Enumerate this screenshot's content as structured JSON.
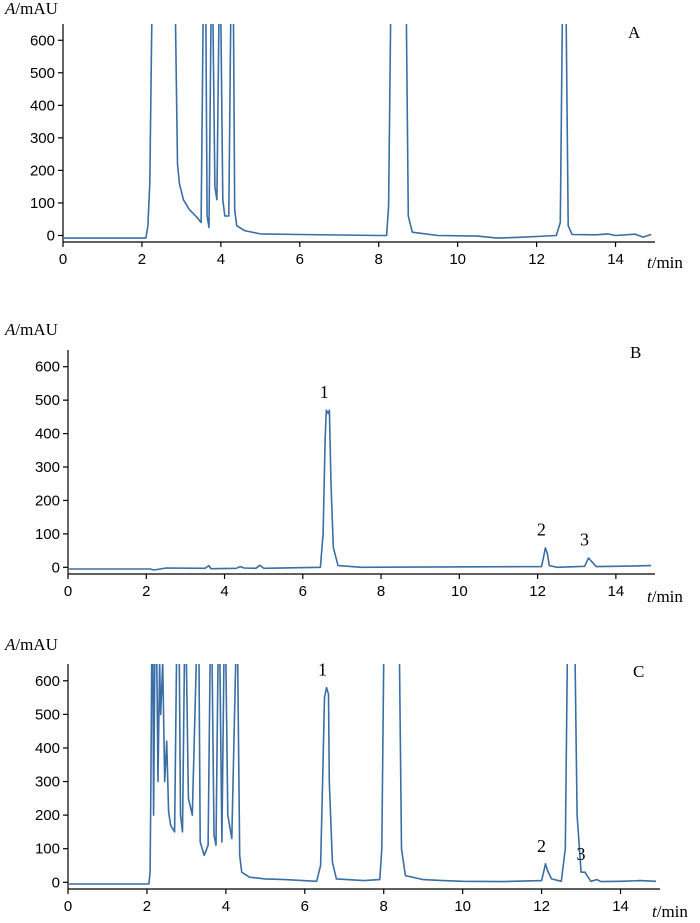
{
  "chart_data": [
    {
      "type": "line",
      "panel": "A",
      "ylabel_var": "A",
      "ylabel_unit": "/mAU",
      "xlabel_var": "t",
      "xlabel_unit": "/min",
      "xlim": [
        0,
        15
      ],
      "ylim": [
        -20,
        650
      ],
      "xticks": [
        0,
        2,
        4,
        6,
        8,
        10,
        12,
        14
      ],
      "yticks": [
        0,
        100,
        200,
        300,
        400,
        500,
        600
      ],
      "color": "#3a6ea5",
      "peak_labels": [],
      "trace": [
        [
          0,
          -8
        ],
        [
          2.1,
          -8
        ],
        [
          2.15,
          30
        ],
        [
          2.2,
          160
        ],
        [
          2.25,
          660
        ],
        [
          2.85,
          660
        ],
        [
          2.9,
          220
        ],
        [
          2.95,
          160
        ],
        [
          3.05,
          110
        ],
        [
          3.2,
          80
        ],
        [
          3.4,
          55
        ],
        [
          3.5,
          40
        ],
        [
          3.55,
          660
        ],
        [
          3.62,
          660
        ],
        [
          3.65,
          60
        ],
        [
          3.7,
          25
        ],
        [
          3.75,
          660
        ],
        [
          3.8,
          660
        ],
        [
          3.85,
          150
        ],
        [
          3.9,
          110
        ],
        [
          3.95,
          660
        ],
        [
          4.0,
          660
        ],
        [
          4.05,
          110
        ],
        [
          4.1,
          60
        ],
        [
          4.2,
          60
        ],
        [
          4.25,
          660
        ],
        [
          4.32,
          660
        ],
        [
          4.35,
          80
        ],
        [
          4.4,
          30
        ],
        [
          4.6,
          15
        ],
        [
          5.0,
          5
        ],
        [
          6.0,
          3
        ],
        [
          8.0,
          0
        ],
        [
          8.2,
          0
        ],
        [
          8.25,
          90
        ],
        [
          8.3,
          660
        ],
        [
          8.7,
          660
        ],
        [
          8.75,
          60
        ],
        [
          8.85,
          10
        ],
        [
          9.5,
          0
        ],
        [
          10.5,
          -2
        ],
        [
          11,
          -8
        ],
        [
          11.5,
          -6
        ],
        [
          12.0,
          -3
        ],
        [
          12.5,
          0
        ],
        [
          12.6,
          40
        ],
        [
          12.65,
          660
        ],
        [
          12.75,
          660
        ],
        [
          12.8,
          30
        ],
        [
          12.9,
          3
        ],
        [
          13.5,
          2
        ],
        [
          13.8,
          5
        ],
        [
          14.0,
          0
        ],
        [
          14.5,
          4
        ],
        [
          14.7,
          -5
        ],
        [
          14.9,
          3
        ]
      ]
    },
    {
      "type": "line",
      "panel": "B",
      "ylabel_var": "A",
      "ylabel_unit": "/mAU",
      "xlabel_var": "t",
      "xlabel_unit": "/min",
      "xlim": [
        0,
        15
      ],
      "ylim": [
        -20,
        650
      ],
      "xticks": [
        0,
        2,
        4,
        6,
        8,
        10,
        12,
        14
      ],
      "yticks": [
        0,
        100,
        200,
        300,
        400,
        500,
        600
      ],
      "color": "#3a6ea5",
      "peak_labels": [
        {
          "text": "1",
          "x": 6.65,
          "y": 470
        },
        {
          "text": "2",
          "x": 12.2,
          "y": 60
        },
        {
          "text": "3",
          "x": 13.3,
          "y": 30
        }
      ],
      "trace": [
        [
          0,
          -5
        ],
        [
          2.1,
          -5
        ],
        [
          2.2,
          -8
        ],
        [
          2.5,
          -2
        ],
        [
          3.5,
          -3
        ],
        [
          3.6,
          5
        ],
        [
          3.65,
          -4
        ],
        [
          4.3,
          -3
        ],
        [
          4.4,
          2
        ],
        [
          4.5,
          -2
        ],
        [
          4.8,
          -3
        ],
        [
          4.9,
          6
        ],
        [
          5.0,
          -3
        ],
        [
          6.45,
          0
        ],
        [
          6.52,
          100
        ],
        [
          6.57,
          380
        ],
        [
          6.6,
          470
        ],
        [
          6.65,
          460
        ],
        [
          6.68,
          470
        ],
        [
          6.72,
          250
        ],
        [
          6.78,
          60
        ],
        [
          6.9,
          5
        ],
        [
          7.5,
          0
        ],
        [
          12.1,
          2
        ],
        [
          12.15,
          30
        ],
        [
          12.2,
          58
        ],
        [
          12.25,
          40
        ],
        [
          12.3,
          5
        ],
        [
          12.5,
          0
        ],
        [
          13.2,
          3
        ],
        [
          13.3,
          28
        ],
        [
          13.4,
          15
        ],
        [
          13.5,
          2
        ],
        [
          14,
          3
        ],
        [
          14.9,
          5
        ]
      ]
    },
    {
      "type": "line",
      "panel": "C",
      "ylabel_var": "A",
      "ylabel_unit": "/mAU",
      "xlabel_var": "t",
      "xlabel_unit": "/min",
      "xlim": [
        0,
        15
      ],
      "ylim": [
        -20,
        650
      ],
      "xticks": [
        0,
        2,
        4,
        6,
        8,
        10,
        12,
        14
      ],
      "yticks": [
        0,
        100,
        200,
        300,
        400,
        500,
        600
      ],
      "color": "#3a6ea5",
      "peak_labels": [
        {
          "text": "1",
          "x": 6.55,
          "y": 580
        },
        {
          "text": "2",
          "x": 12.1,
          "y": 55
        },
        {
          "text": "3",
          "x": 13.1,
          "y": 30
        }
      ],
      "trace": [
        [
          0,
          -5
        ],
        [
          2.05,
          -5
        ],
        [
          2.08,
          30
        ],
        [
          2.1,
          300
        ],
        [
          2.12,
          660
        ],
        [
          2.15,
          660
        ],
        [
          2.17,
          200
        ],
        [
          2.2,
          660
        ],
        [
          2.25,
          660
        ],
        [
          2.28,
          300
        ],
        [
          2.32,
          660
        ],
        [
          2.35,
          500
        ],
        [
          2.4,
          660
        ],
        [
          2.45,
          300
        ],
        [
          2.5,
          420
        ],
        [
          2.55,
          210
        ],
        [
          2.6,
          170
        ],
        [
          2.7,
          150
        ],
        [
          2.75,
          660
        ],
        [
          2.82,
          660
        ],
        [
          2.85,
          200
        ],
        [
          2.9,
          150
        ],
        [
          2.95,
          660
        ],
        [
          3.0,
          660
        ],
        [
          3.05,
          250
        ],
        [
          3.15,
          200
        ],
        [
          3.25,
          660
        ],
        [
          3.32,
          660
        ],
        [
          3.35,
          120
        ],
        [
          3.45,
          80
        ],
        [
          3.55,
          110
        ],
        [
          3.6,
          660
        ],
        [
          3.65,
          660
        ],
        [
          3.7,
          140
        ],
        [
          3.75,
          110
        ],
        [
          3.8,
          660
        ],
        [
          3.85,
          660
        ],
        [
          3.9,
          120
        ],
        [
          3.95,
          660
        ],
        [
          4.0,
          660
        ],
        [
          4.05,
          200
        ],
        [
          4.15,
          130
        ],
        [
          4.25,
          660
        ],
        [
          4.3,
          660
        ],
        [
          4.35,
          80
        ],
        [
          4.4,
          30
        ],
        [
          4.6,
          15
        ],
        [
          5.0,
          10
        ],
        [
          5.5,
          8
        ],
        [
          6.3,
          3
        ],
        [
          6.4,
          50
        ],
        [
          6.45,
          300
        ],
        [
          6.5,
          550
        ],
        [
          6.55,
          580
        ],
        [
          6.6,
          560
        ],
        [
          6.62,
          300
        ],
        [
          6.7,
          60
        ],
        [
          6.8,
          10
        ],
        [
          7.5,
          5
        ],
        [
          7.9,
          8
        ],
        [
          7.95,
          100
        ],
        [
          8.0,
          660
        ],
        [
          8.4,
          660
        ],
        [
          8.45,
          100
        ],
        [
          8.55,
          20
        ],
        [
          9.0,
          8
        ],
        [
          9.5,
          5
        ],
        [
          10,
          3
        ],
        [
          11,
          2
        ],
        [
          12.0,
          5
        ],
        [
          12.05,
          30
        ],
        [
          12.1,
          55
        ],
        [
          12.15,
          35
        ],
        [
          12.25,
          10
        ],
        [
          12.5,
          3
        ],
        [
          12.6,
          100
        ],
        [
          12.65,
          660
        ],
        [
          12.85,
          660
        ],
        [
          12.9,
          200
        ],
        [
          13.0,
          30
        ],
        [
          13.1,
          30
        ],
        [
          13.15,
          20
        ],
        [
          13.25,
          3
        ],
        [
          13.4,
          8
        ],
        [
          13.5,
          2
        ],
        [
          14.0,
          3
        ],
        [
          14.5,
          5
        ],
        [
          14.9,
          3
        ]
      ]
    }
  ]
}
